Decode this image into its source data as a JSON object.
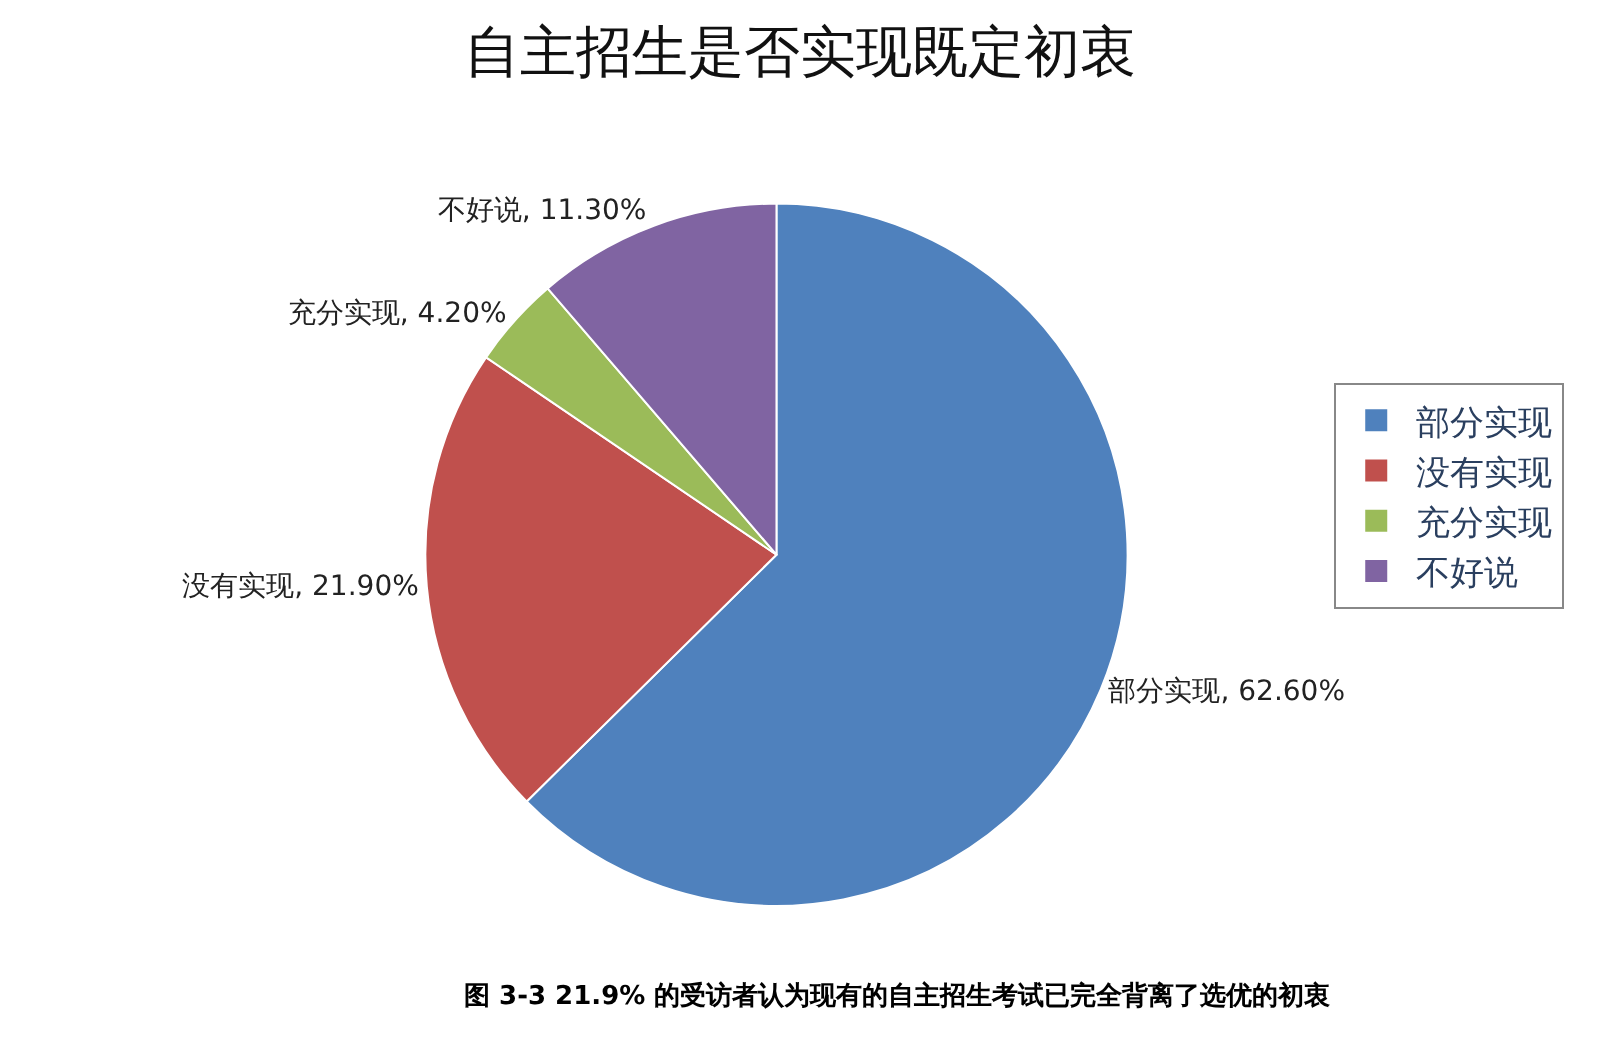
{
  "chart_data": {
    "type": "pie",
    "title": "自主招生是否实现既定初衷",
    "categories": [
      "部分实现",
      "没有实现",
      "充分实现",
      "不好说"
    ],
    "values": [
      62.6,
      21.9,
      4.2,
      11.3
    ],
    "colors": [
      "#4f81bd",
      "#c0504d",
      "#9bbb59",
      "#8064a2"
    ],
    "value_labels": [
      "部分实现, 62.60%",
      "没有实现, 21.90%",
      "充分实现, 4.20%",
      "不好说, 11.30%"
    ],
    "legend": "right",
    "annotations": [
      "图 3-3 21.9% 的受访者认为现有的自主招生考试已完全背离了选优的初衷"
    ]
  }
}
